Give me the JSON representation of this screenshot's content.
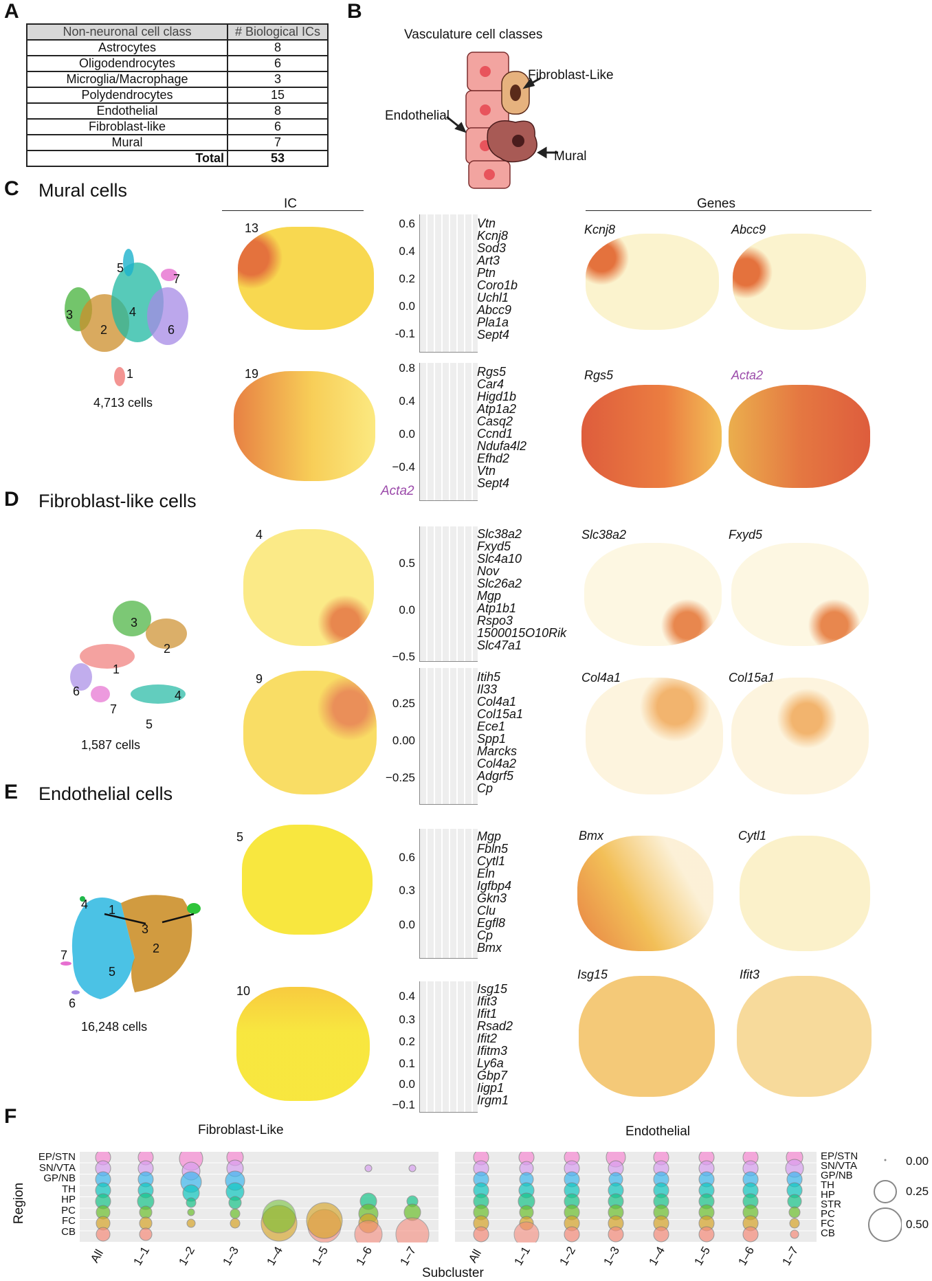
{
  "panels": {
    "a": "A",
    "b": "B",
    "c": "C",
    "d": "D",
    "e": "E",
    "f": "F"
  },
  "table": {
    "headers": [
      "Non-neuronal cell class",
      "# Biological ICs"
    ],
    "rows": [
      {
        "cls": "Astrocytes",
        "n": "8"
      },
      {
        "cls": "Oligodendrocytes",
        "n": "6"
      },
      {
        "cls": "Microglia/Macrophage",
        "n": "3"
      },
      {
        "cls": "Polydendrocytes",
        "n": "15"
      },
      {
        "cls": "Endothelial",
        "n": "8"
      },
      {
        "cls": "Fibroblast-like",
        "n": "6"
      },
      {
        "cls": "Mural",
        "n": "7"
      }
    ],
    "total_label": "Total",
    "total_value": "53"
  },
  "vasculature": {
    "title": "Vasculature cell classes",
    "fibroblast": "Fibroblast-Like",
    "endothelial": "Endothelial",
    "mural": "Mural",
    "colors": {
      "endo": "#f2a4a0",
      "endo_nucleus": "#e8545c",
      "fib": "#e6b27e",
      "fib_nucleus": "#5a2a1a",
      "mural": "#a85a55",
      "mural_nucleus": "#4a1c1c"
    }
  },
  "mural": {
    "title": "Mural cells",
    "ic_header": "IC",
    "genes_header": "Genes",
    "cells": "4,713 cells",
    "cluster_labels": [
      "5",
      "7",
      "3",
      "4",
      "2",
      "6",
      "1"
    ],
    "ics": [
      {
        "num": "13",
        "ticks": [
          "0.6",
          "0.4",
          "0.2",
          "0.0",
          "-0.1"
        ],
        "genes": [
          "Vtn",
          "Kcnj8",
          "Sod3",
          "Art3",
          "Ptn",
          "Coro1b",
          "Uchl1",
          "Abcc9",
          "Pla1a",
          "Sept4"
        ],
        "gene_maps": [
          "Kcnj8",
          "Abcc9"
        ]
      },
      {
        "num": "19",
        "ticks": [
          "0.8",
          "0.4",
          "0.0",
          "−0.4"
        ],
        "genes": [
          "Rgs5",
          "Car4",
          "Higd1b",
          "Atp1a2",
          "Casq2",
          "Ccnd1",
          "Ndufa4l2",
          "Efhd2",
          "Vtn",
          "Sept4"
        ],
        "extra_gene": "Acta2",
        "gene_maps": [
          "Rgs5",
          "Acta2"
        ]
      }
    ]
  },
  "fibro": {
    "title": "Fibroblast-like cells",
    "cells": "1,587 cells",
    "cluster_labels": [
      "3",
      "2",
      "1",
      "6",
      "7",
      "4",
      "5"
    ],
    "ics": [
      {
        "num": "4",
        "ticks": [
          "0.5",
          "0.0",
          "−0.5"
        ],
        "genes": [
          "Slc38a2",
          "Fxyd5",
          "Slc4a10",
          "Nov",
          "Slc26a2",
          "Mgp",
          "Atp1b1",
          "Rspo3",
          "1500015O10Rik",
          "Slc47a1"
        ],
        "gene_maps": [
          "Slc38a2",
          "Fxyd5"
        ]
      },
      {
        "num": "9",
        "ticks": [
          "0.25",
          "0.00",
          "−0.25"
        ],
        "genes": [
          "Itih5",
          "Il33",
          "Col4a1",
          "Col15a1",
          "Ece1",
          "Spp1",
          "Marcks",
          "Col4a2",
          "Adgrf5",
          "Cp"
        ],
        "gene_maps": [
          "Col4a1",
          "Col15a1"
        ]
      }
    ]
  },
  "endo": {
    "title": "Endothelial cells",
    "cells": "16,248 cells",
    "cluster_labels": [
      "4",
      "1",
      "3",
      "2",
      "7",
      "5",
      "6"
    ],
    "ics": [
      {
        "num": "5",
        "ticks": [
          "0.6",
          "0.3",
          "0.0"
        ],
        "genes": [
          "Mgp",
          "Fbln5",
          "Cytl1",
          "Eln",
          "Igfbp4",
          "Gkn3",
          "Clu",
          "Egfl8",
          "Cp",
          "Bmx"
        ],
        "gene_maps": [
          "Bmx",
          "Cytl1"
        ]
      },
      {
        "num": "10",
        "ticks": [
          "0.4",
          "0.3",
          "0.2",
          "0.1",
          "0.0",
          "−0.1"
        ],
        "genes": [
          "Isg15",
          "Ifit3",
          "Ifit1",
          "Rsad2",
          "Ifit2",
          "Ifitm3",
          "Ly6a",
          "Gbp7",
          "Iigp1",
          "Irgm1"
        ],
        "gene_maps": [
          "Isg15",
          "Ifit3"
        ]
      }
    ]
  },
  "panel_f": {
    "title_fib": "Fibroblast-Like",
    "title_endo": "Endothelial",
    "ylabel": "Region",
    "xlabel": "Subcluster",
    "regions_left": [
      "EP/STN",
      "SN/VTA",
      "GP/NB",
      "TH",
      "HP",
      "PC",
      "FC",
      "CB"
    ],
    "regions_right": [
      "EP/STN",
      "SN/VTA",
      "GP/NB",
      "TH",
      "HP",
      "STR",
      "PC",
      "FC",
      "CB"
    ],
    "x_labels": [
      "All",
      "1–1",
      "1–2",
      "1–3",
      "1–4",
      "1–5",
      "1–6",
      "1–7"
    ],
    "size_legend": [
      "0.00",
      "0.25",
      "0.50"
    ],
    "region_colors": [
      "#f78bd4",
      "#d8a0f0",
      "#3fb8ef",
      "#10c7c0",
      "#19c489",
      "#6dbf2e",
      "#d6a52a",
      "#f58c7c"
    ]
  }
}
